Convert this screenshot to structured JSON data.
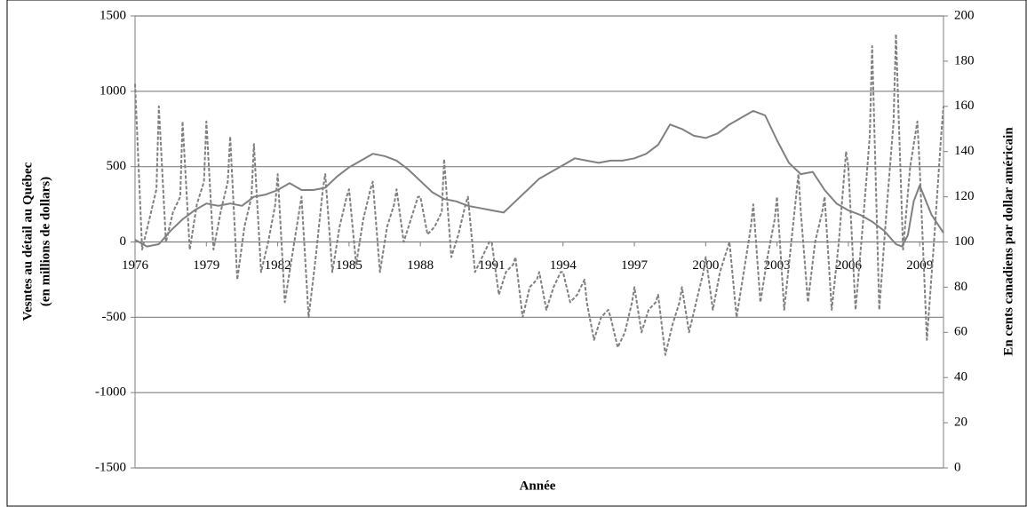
{
  "chart_data": {
    "type": "line",
    "xlabel": "Année",
    "ylabel": [
      "Vesntes au détail au Québec",
      "(en millions de dollars)"
    ],
    "y2label": "En cents canadiens par dollar américain",
    "xlim": [
      1976,
      2010
    ],
    "xticks": [
      1976,
      1979,
      1982,
      1985,
      1988,
      1991,
      1994,
      1997,
      2000,
      2003,
      2006,
      2009
    ],
    "ylim": [
      -1500,
      1500
    ],
    "yticks": [
      -1500,
      -1000,
      -500,
      0,
      500,
      1000,
      1500
    ],
    "y2lim": [
      0,
      200
    ],
    "y2ticks": [
      0,
      20,
      40,
      60,
      80,
      100,
      120,
      140,
      160,
      180,
      200
    ],
    "grid": true,
    "series": [
      {
        "color": "#808080",
        "style": "dashed",
        "x": [
          1976,
          1976.3,
          1976.6,
          1976.9,
          1977,
          1977.3,
          1977.6,
          1977.9,
          1978,
          1978.3,
          1978.6,
          1978.9,
          1979,
          1979.3,
          1979.6,
          1979.9,
          1980,
          1980.3,
          1980.6,
          1980.9,
          1981,
          1981.3,
          1981.6,
          1981.9,
          1982,
          1982.3,
          1982.6,
          1982.9,
          1983,
          1983.3,
          1983.6,
          1983.9,
          1984,
          1984.3,
          1984.6,
          1984.9,
          1985,
          1985.3,
          1985.6,
          1985.9,
          1986,
          1986.3,
          1986.6,
          1986.9,
          1987,
          1987.3,
          1987.6,
          1987.9,
          1988,
          1988.3,
          1988.6,
          1988.9,
          1989,
          1989.3,
          1989.6,
          1989.9,
          1990,
          1990.3,
          1990.6,
          1990.9,
          1991,
          1991.3,
          1991.6,
          1991.9,
          1992,
          1992.3,
          1992.6,
          1992.9,
          1993,
          1993.3,
          1993.6,
          1993.9,
          1994,
          1994.3,
          1994.6,
          1994.9,
          1995,
          1995.3,
          1995.6,
          1995.9,
          1996,
          1996.3,
          1996.6,
          1996.9,
          1997,
          1997.3,
          1997.6,
          1997.9,
          1998,
          1998.3,
          1998.6,
          1998.9,
          1999,
          1999.3,
          1999.6,
          1999.9,
          2000,
          2000.3,
          2000.6,
          2000.9,
          2001,
          2001.3,
          2001.6,
          2001.9,
          2002,
          2002.3,
          2002.6,
          2002.9,
          2003,
          2003.3,
          2003.6,
          2003.9,
          2004,
          2004.3,
          2004.6,
          2004.9,
          2005,
          2005.3,
          2005.6,
          2005.9,
          2006,
          2006.3,
          2006.6,
          2006.9,
          2007,
          2007.3,
          2007.6,
          2007.9,
          2008,
          2008.3,
          2008.6,
          2008.9,
          2009,
          2009.3,
          2009.6,
          2009.9,
          2010
        ],
        "values": [
          1050,
          -50,
          150,
          350,
          900,
          0,
          200,
          300,
          800,
          -50,
          250,
          400,
          800,
          -50,
          200,
          400,
          700,
          -250,
          100,
          300,
          650,
          -200,
          0,
          250,
          450,
          -400,
          -100,
          200,
          300,
          -500,
          -100,
          350,
          450,
          -200,
          100,
          300,
          350,
          -150,
          150,
          350,
          400,
          -200,
          100,
          250,
          350,
          0,
          150,
          300,
          300,
          50,
          100,
          200,
          550,
          -100,
          50,
          250,
          300,
          -200,
          -100,
          0,
          0,
          -350,
          -200,
          -150,
          -100,
          -500,
          -300,
          -250,
          -200,
          -450,
          -300,
          -200,
          -200,
          -400,
          -350,
          -250,
          -400,
          -650,
          -500,
          -450,
          -500,
          -700,
          -600,
          -400,
          -300,
          -600,
          -450,
          -400,
          -350,
          -750,
          -550,
          -400,
          -300,
          -600,
          -400,
          -200,
          -100,
          -450,
          -200,
          -50,
          0,
          -500,
          -200,
          100,
          250,
          -400,
          -100,
          150,
          300,
          -450,
          0,
          450,
          200,
          -400,
          0,
          200,
          300,
          -450,
          0,
          600,
          500,
          -450,
          100,
          700,
          1300,
          -450,
          200,
          800,
          1380,
          -50,
          500,
          800,
          500,
          -650,
          0,
          700,
          900
        ]
      },
      {
        "color": "#808080",
        "style": "solid",
        "axis": "y2",
        "x": [
          1976,
          1976.5,
          1977,
          1977.5,
          1978,
          1978.5,
          1979,
          1979.5,
          1980,
          1980.5,
          1981,
          1981.5,
          1982,
          1982.5,
          1983,
          1983.5,
          1984,
          1984.5,
          1985,
          1985.5,
          1986,
          1986.5,
          1987,
          1987.5,
          1988,
          1988.5,
          1989,
          1989.5,
          1990,
          1990.5,
          1991,
          1991.5,
          1992,
          1992.5,
          1993,
          1993.5,
          1994,
          1994.5,
          1995,
          1995.5,
          1996,
          1996.5,
          1997,
          1997.5,
          1998,
          1998.5,
          1999,
          1999.5,
          2000,
          2000.5,
          2001,
          2001.5,
          2002,
          2002.5,
          2003,
          2003.5,
          2004,
          2004.5,
          2005,
          2005.5,
          2006,
          2006.5,
          2007,
          2007.5,
          2008,
          2008.25,
          2008.5,
          2008.75,
          2009,
          2009.5,
          2010
        ],
        "values": [
          101,
          98,
          99,
          105,
          110,
          114,
          117,
          116,
          117,
          116,
          120,
          121,
          123,
          126,
          123,
          123,
          124,
          129,
          133,
          136,
          139,
          138,
          136,
          132,
          127,
          122,
          119,
          118,
          116,
          115,
          114,
          113,
          118,
          123,
          128,
          131,
          134,
          137,
          136,
          135,
          136,
          136,
          137,
          139,
          143,
          152,
          150,
          147,
          146,
          148,
          152,
          155,
          158,
          156,
          145,
          135,
          130,
          131,
          123,
          117,
          114,
          112,
          109,
          105,
          99,
          98,
          103,
          118,
          125,
          112,
          104
        ]
      }
    ]
  }
}
